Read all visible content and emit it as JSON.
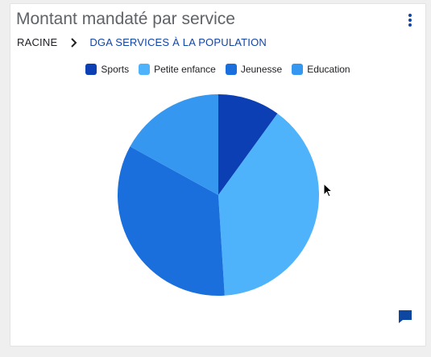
{
  "widget": {
    "title": "Montant mandaté par service",
    "menu_icon": "more-vert-icon",
    "comment_icon": "comment-icon"
  },
  "breadcrumb": {
    "root": "RACINE",
    "separator_icon": "chevron-right-icon",
    "current": "DGA SERVICES À LA POPULATION"
  },
  "colors": {
    "title": "#5f6368",
    "breadcrumb_current": "#1045a8",
    "comment_icon": "#0d47a1"
  },
  "chart_data": {
    "type": "pie",
    "title": "",
    "legend_position": "top",
    "slices": [
      {
        "label": "Sports",
        "value": 10,
        "color": "#0b3fb3"
      },
      {
        "label": "Petite enfance",
        "value": 39,
        "color": "#4fb3fb"
      },
      {
        "label": "Jeunesse",
        "value": 34,
        "color": "#1a6fdc"
      },
      {
        "label": "Education",
        "value": 17,
        "color": "#3597f0"
      }
    ]
  }
}
